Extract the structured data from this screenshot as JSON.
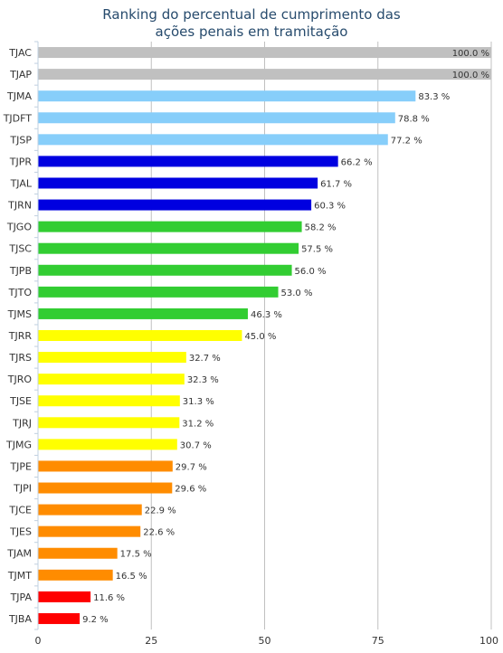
{
  "chart_data": {
    "type": "bar",
    "orientation": "horizontal",
    "title_lines": [
      "Ranking do percentual de cumprimento das",
      "ações penais em tramitação"
    ],
    "categories": [
      "TJAC",
      "TJAP",
      "TJMA",
      "TJDFT",
      "TJSP",
      "TJPR",
      "TJAL",
      "TJRN",
      "TJGO",
      "TJSC",
      "TJPB",
      "TJTO",
      "TJMS",
      "TJRR",
      "TJRS",
      "TJRO",
      "TJSE",
      "TJRJ",
      "TJMG",
      "TJPE",
      "TJPI",
      "TJCE",
      "TJES",
      "TJAM",
      "TJMT",
      "TJPA",
      "TJBA"
    ],
    "values": [
      100.0,
      100.0,
      83.3,
      78.8,
      77.2,
      66.2,
      61.7,
      60.3,
      58.2,
      57.5,
      56.0,
      53.0,
      46.3,
      45.0,
      32.7,
      32.3,
      31.3,
      31.2,
      30.7,
      29.7,
      29.6,
      22.9,
      22.6,
      17.5,
      16.5,
      11.6,
      9.2
    ],
    "value_labels": [
      "100.0 %",
      "100.0 %",
      "83.3 %",
      "78.8 %",
      "77.2 %",
      "66.2 %",
      "61.7 %",
      "60.3 %",
      "58.2 %",
      "57.5 %",
      "56.0 %",
      "53.0 %",
      "46.3 %",
      "45.0 %",
      "32.7 %",
      "32.3 %",
      "31.3 %",
      "31.2 %",
      "30.7 %",
      "29.7 %",
      "29.6 %",
      "22.9 %",
      "22.6 %",
      "17.5 %",
      "16.5 %",
      "11.6 %",
      "9.2 %"
    ],
    "colors": [
      "#c0c0c0",
      "#c0c0c0",
      "#87cefa",
      "#87cefa",
      "#87cefa",
      "#0000e0",
      "#0000e0",
      "#0000e0",
      "#32cd32",
      "#32cd32",
      "#32cd32",
      "#32cd32",
      "#32cd32",
      "#ffff00",
      "#ffff00",
      "#ffff00",
      "#ffff00",
      "#ffff00",
      "#ffff00",
      "#ff8c00",
      "#ff8c00",
      "#ff8c00",
      "#ff8c00",
      "#ff8c00",
      "#ff8c00",
      "#ff0000",
      "#ff0000"
    ],
    "xlim": [
      0,
      100
    ],
    "xticks": [
      0,
      25,
      50,
      75,
      100
    ],
    "xtick_labels": [
      "0",
      "25",
      "50",
      "75",
      "100"
    ],
    "grid": true,
    "legend": false
  }
}
